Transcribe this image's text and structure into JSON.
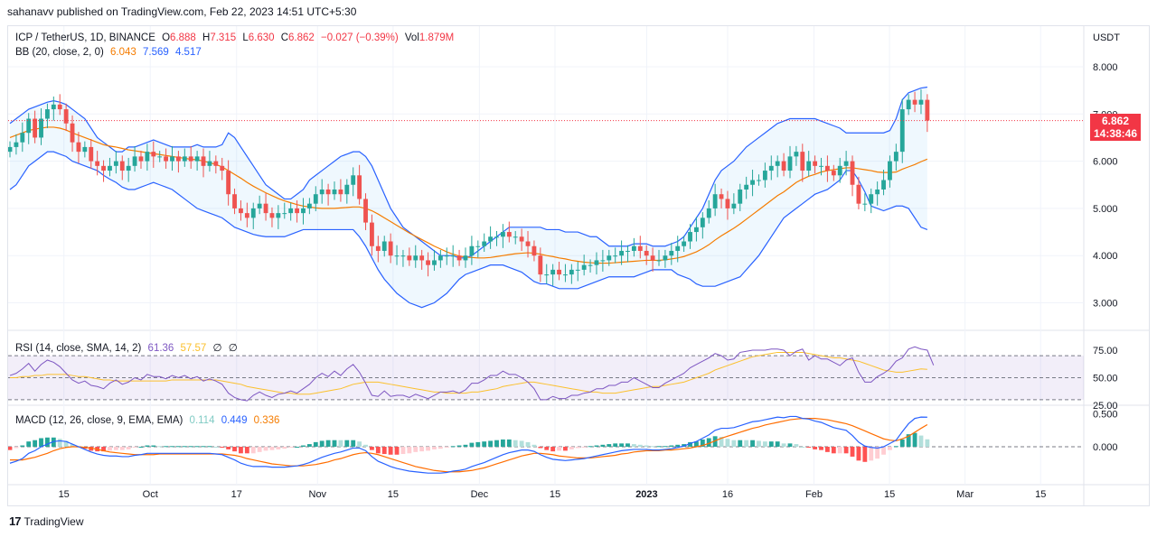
{
  "publisher": "sahanavv published on TradingView.com, Feb 22, 2023 14:51 UTC+5:30",
  "legend_main": {
    "symbol": "ICP / TetherUS, 1D, BINANCE",
    "o_label": "O",
    "o": "6.888",
    "h_label": "H",
    "h": "7.315",
    "l_label": "L",
    "l": "6.630",
    "c_label": "C",
    "c": "6.862",
    "change": "−0.027 (−0.39%)",
    "vol_label": "Vol",
    "vol": "1.879M"
  },
  "legend_bb": {
    "name": "BB (20, close, 2, 0)",
    "basis": "6.043",
    "upper": "7.569",
    "lower": "4.517"
  },
  "legend_rsi": {
    "name": "RSI (14, close, SMA, 14, 2)",
    "rsi": "61.36",
    "sma": "57.57",
    "a": "∅",
    "b": "∅"
  },
  "legend_macd": {
    "name": "MACD (12, 26, close, 9, EMA, EMA)",
    "hist": "0.114",
    "macd": "0.449",
    "signal": "0.336"
  },
  "price_tag": {
    "price": "6.862",
    "countdown": "14:38:46"
  },
  "footer": {
    "brand": "TradingView",
    "logo": "17"
  },
  "chart_data": {
    "type": "candlestick",
    "currency_label": "USDT",
    "price_ticks": [
      "8.000",
      "7.000",
      "6.000",
      "5.000",
      "4.000",
      "3.000"
    ],
    "price_tick_values": [
      8,
      7,
      6,
      5,
      4,
      3
    ],
    "rsi_ticks": [
      "75.00",
      "50.00",
      "25.00"
    ],
    "rsi_tick_values": [
      75,
      50,
      25
    ],
    "macd_ticks": [
      "0.500",
      "0.000"
    ],
    "macd_tick_values": [
      0.5,
      0
    ],
    "x_ticks": [
      {
        "label": "15",
        "date": "2022-09-15"
      },
      {
        "label": "Oct",
        "date": "2022-10-01"
      },
      {
        "label": "17",
        "date": "2022-10-17"
      },
      {
        "label": "Nov",
        "date": "2022-11-01"
      },
      {
        "label": "15",
        "date": "2022-11-15"
      },
      {
        "label": "Dec",
        "date": "2022-12-01"
      },
      {
        "label": "15",
        "date": "2022-12-15"
      },
      {
        "label": "2023",
        "date": "2023-01-01"
      },
      {
        "label": "16",
        "date": "2023-01-16"
      },
      {
        "label": "Feb",
        "date": "2023-02-01"
      },
      {
        "label": "15",
        "date": "2023-02-15"
      },
      {
        "label": "Mar",
        "date": "2023-03-01"
      },
      {
        "label": "15",
        "date": "2023-03-15"
      }
    ],
    "date_range": [
      "2022-09-05",
      "2023-02-22"
    ],
    "close": [
      6.3,
      6.4,
      6.6,
      6.9,
      6.5,
      6.9,
      7.1,
      7.2,
      7.1,
      6.8,
      6.4,
      6.2,
      6.3,
      6.0,
      5.9,
      5.8,
      5.9,
      6.0,
      5.8,
      5.9,
      6.1,
      6.0,
      6.2,
      6.1,
      6.1,
      6.0,
      6.1,
      6.0,
      6.1,
      6.0,
      6.1,
      5.9,
      6.0,
      5.9,
      5.8,
      5.3,
      5.0,
      4.9,
      4.8,
      5.0,
      5.1,
      4.9,
      4.8,
      4.9,
      4.9,
      5.0,
      4.9,
      5.0,
      5.1,
      5.3,
      5.4,
      5.3,
      5.4,
      5.3,
      5.5,
      5.7,
      5.2,
      4.7,
      4.2,
      4.1,
      4.3,
      4.0,
      4.0,
      4.0,
      3.9,
      4.0,
      3.9,
      3.8,
      3.9,
      4.0,
      4.0,
      4.0,
      3.9,
      4.0,
      4.2,
      4.2,
      4.3,
      4.4,
      4.4,
      4.5,
      4.4,
      4.4,
      4.3,
      4.2,
      4.0,
      3.6,
      3.6,
      3.7,
      3.6,
      3.6,
      3.7,
      3.7,
      3.8,
      3.8,
      3.9,
      3.9,
      4.0,
      4.0,
      4.1,
      4.1,
      4.2,
      4.1,
      4.0,
      3.9,
      3.9,
      4.0,
      4.1,
      4.2,
      4.3,
      4.5,
      4.6,
      4.8,
      5.0,
      5.3,
      5.2,
      5.0,
      5.1,
      5.4,
      5.5,
      5.6,
      5.6,
      5.8,
      5.9,
      6.0,
      5.8,
      6.1,
      6.2,
      5.8,
      6.0,
      5.9,
      5.9,
      5.8,
      5.7,
      5.9,
      6.0,
      5.5,
      5.1,
      5.1,
      5.3,
      5.4,
      5.6,
      6.0,
      6.2,
      7.1,
      7.3,
      7.2,
      7.3,
      6.86
    ],
    "bb_upper": [
      6.8,
      6.9,
      7.0,
      7.1,
      7.15,
      7.2,
      7.25,
      7.28,
      7.25,
      7.2,
      7.1,
      7.0,
      6.9,
      6.7,
      6.5,
      6.4,
      6.3,
      6.2,
      6.2,
      6.3,
      6.3,
      6.35,
      6.4,
      6.45,
      6.4,
      6.35,
      6.3,
      6.3,
      6.3,
      6.3,
      6.35,
      6.3,
      6.3,
      6.3,
      6.35,
      6.6,
      6.5,
      6.3,
      6.1,
      5.9,
      5.7,
      5.5,
      5.4,
      5.3,
      5.2,
      5.2,
      5.3,
      5.4,
      5.6,
      5.7,
      5.8,
      5.9,
      6.0,
      6.1,
      6.15,
      6.2,
      6.2,
      6.1,
      5.9,
      5.6,
      5.3,
      5.0,
      4.8,
      4.6,
      4.5,
      4.4,
      4.3,
      4.2,
      4.1,
      4.0,
      4.0,
      4.0,
      3.95,
      3.95,
      4.0,
      4.1,
      4.2,
      4.3,
      4.4,
      4.5,
      4.6,
      4.6,
      4.6,
      4.6,
      4.6,
      4.6,
      4.55,
      4.55,
      4.55,
      4.5,
      4.5,
      4.5,
      4.45,
      4.4,
      4.4,
      4.3,
      4.2,
      4.2,
      4.2,
      4.2,
      4.25,
      4.25,
      4.25,
      4.2,
      4.2,
      4.2,
      4.25,
      4.3,
      4.4,
      4.6,
      4.8,
      5.0,
      5.3,
      5.6,
      5.8,
      5.9,
      6.0,
      6.15,
      6.3,
      6.4,
      6.5,
      6.6,
      6.7,
      6.8,
      6.85,
      6.9,
      6.9,
      6.9,
      6.9,
      6.9,
      6.85,
      6.8,
      6.75,
      6.7,
      6.6,
      6.6,
      6.6,
      6.6,
      6.6,
      6.6,
      6.6,
      6.65,
      6.9,
      7.3,
      7.45,
      7.5,
      7.55,
      7.57
    ],
    "bb_basis": [
      6.5,
      6.55,
      6.6,
      6.65,
      6.68,
      6.7,
      6.72,
      6.72,
      6.7,
      6.66,
      6.6,
      6.55,
      6.5,
      6.45,
      6.4,
      6.35,
      6.32,
      6.3,
      6.27,
      6.24,
      6.22,
      6.2,
      6.18,
      6.16,
      6.14,
      6.12,
      6.1,
      6.08,
      6.06,
      6.04,
      6.03,
      6.0,
      5.97,
      5.93,
      5.88,
      5.8,
      5.72,
      5.64,
      5.55,
      5.47,
      5.4,
      5.33,
      5.27,
      5.21,
      5.16,
      5.12,
      5.08,
      5.05,
      5.03,
      5.01,
      5.0,
      5.0,
      5.0,
      5.01,
      5.02,
      5.03,
      5.03,
      5.0,
      4.95,
      4.88,
      4.8,
      4.72,
      4.64,
      4.56,
      4.48,
      4.41,
      4.34,
      4.27,
      4.2,
      4.14,
      4.08,
      4.03,
      3.99,
      3.97,
      3.96,
      3.95,
      3.95,
      3.96,
      3.98,
      4.0,
      4.02,
      4.04,
      4.05,
      4.06,
      4.05,
      4.03,
      4.0,
      3.98,
      3.95,
      3.93,
      3.9,
      3.88,
      3.86,
      3.85,
      3.84,
      3.84,
      3.84,
      3.85,
      3.86,
      3.87,
      3.88,
      3.89,
      3.9,
      3.9,
      3.9,
      3.91,
      3.93,
      3.95,
      3.98,
      4.03,
      4.08,
      4.15,
      4.23,
      4.33,
      4.42,
      4.5,
      4.58,
      4.67,
      4.77,
      4.87,
      4.97,
      5.07,
      5.17,
      5.27,
      5.35,
      5.45,
      5.55,
      5.62,
      5.68,
      5.72,
      5.77,
      5.8,
      5.82,
      5.84,
      5.86,
      5.86,
      5.84,
      5.82,
      5.8,
      5.77,
      5.76,
      5.76,
      5.77,
      5.83,
      5.88,
      5.93,
      5.99,
      6.043
    ],
    "bb_lower": [
      5.4,
      5.5,
      5.7,
      5.9,
      6.0,
      6.1,
      6.2,
      6.2,
      6.15,
      6.1,
      6.0,
      5.95,
      5.9,
      5.85,
      5.8,
      5.7,
      5.62,
      5.55,
      5.45,
      5.4,
      5.4,
      5.45,
      5.5,
      5.55,
      5.5,
      5.45,
      5.4,
      5.3,
      5.2,
      5.1,
      5.0,
      4.95,
      4.9,
      4.85,
      4.8,
      4.7,
      4.6,
      4.55,
      4.5,
      4.45,
      4.42,
      4.4,
      4.4,
      4.4,
      4.4,
      4.45,
      4.5,
      4.55,
      4.55,
      4.55,
      4.55,
      4.55,
      4.55,
      4.55,
      4.55,
      4.55,
      4.4,
      4.2,
      3.95,
      3.7,
      3.5,
      3.35,
      3.2,
      3.1,
      3.0,
      2.95,
      2.9,
      2.95,
      3.0,
      3.1,
      3.2,
      3.35,
      3.5,
      3.6,
      3.65,
      3.7,
      3.75,
      3.8,
      3.8,
      3.8,
      3.75,
      3.7,
      3.65,
      3.55,
      3.45,
      3.4,
      3.4,
      3.35,
      3.3,
      3.3,
      3.3,
      3.3,
      3.35,
      3.4,
      3.45,
      3.5,
      3.55,
      3.55,
      3.55,
      3.55,
      3.55,
      3.6,
      3.65,
      3.7,
      3.7,
      3.7,
      3.7,
      3.6,
      3.55,
      3.5,
      3.4,
      3.35,
      3.35,
      3.35,
      3.4,
      3.45,
      3.5,
      3.55,
      3.7,
      3.85,
      4.0,
      4.2,
      4.4,
      4.6,
      4.8,
      4.9,
      5.0,
      5.1,
      5.2,
      5.3,
      5.35,
      5.4,
      5.5,
      5.6,
      5.8,
      5.8,
      5.6,
      5.35,
      5.05,
      5.0,
      4.95,
      5.0,
      5.05,
      5.05,
      5.0,
      4.8,
      4.6,
      4.55,
      4.517
    ],
    "rsi": [
      52,
      54,
      58,
      63,
      56,
      62,
      66,
      64,
      60,
      54,
      48,
      45,
      47,
      43,
      42,
      40,
      45,
      48,
      44,
      46,
      50,
      48,
      53,
      51,
      51,
      49,
      52,
      50,
      52,
      49,
      51,
      47,
      49,
      47,
      44,
      36,
      32,
      30,
      29,
      34,
      37,
      34,
      32,
      35,
      36,
      38,
      36,
      40,
      44,
      50,
      54,
      51,
      56,
      52,
      58,
      62,
      55,
      45,
      34,
      33,
      38,
      33,
      34,
      34,
      32,
      35,
      33,
      31,
      34,
      37,
      37,
      38,
      36,
      39,
      45,
      45,
      48,
      52,
      52,
      56,
      53,
      53,
      50,
      46,
      40,
      30,
      30,
      33,
      31,
      31,
      34,
      34,
      36,
      37,
      40,
      40,
      43,
      43,
      46,
      46,
      50,
      47,
      44,
      41,
      41,
      45,
      48,
      51,
      54,
      59,
      62,
      65,
      68,
      72,
      70,
      66,
      67,
      73,
      74,
      75,
      75,
      75,
      76,
      76,
      75,
      70,
      74,
      76,
      66,
      70,
      67,
      67,
      64,
      61,
      66,
      68,
      55,
      46,
      46,
      51,
      54,
      58,
      65,
      68,
      76,
      78,
      76,
      75,
      61.36
    ],
    "rsi_sma": [
      50,
      50,
      51,
      51,
      52,
      52,
      53,
      53,
      53,
      53,
      52,
      51,
      51,
      50,
      49,
      48,
      48,
      47,
      47,
      47,
      47,
      47,
      47,
      47,
      47,
      47,
      48,
      48,
      48,
      48,
      48,
      48,
      48,
      48,
      47,
      46,
      45,
      44,
      42,
      41,
      40,
      39,
      38,
      37,
      36,
      36,
      35,
      35,
      35,
      36,
      37,
      38,
      39,
      40,
      42,
      44,
      45,
      46,
      46,
      46,
      45,
      44,
      43,
      42,
      41,
      40,
      39,
      38,
      37,
      37,
      36,
      36,
      36,
      36,
      37,
      37,
      38,
      39,
      40,
      42,
      43,
      44,
      45,
      46,
      46,
      45,
      44,
      43,
      42,
      41,
      40,
      39,
      38,
      37,
      37,
      36,
      36,
      36,
      37,
      38,
      39,
      40,
      41,
      42,
      42,
      43,
      44,
      45,
      46,
      48,
      50,
      52,
      54,
      57,
      59,
      61,
      63,
      65,
      67,
      69,
      70,
      71,
      72,
      73,
      73,
      73,
      73,
      73,
      72,
      71,
      70,
      69,
      68,
      68,
      67,
      66,
      65,
      63,
      61,
      59,
      57,
      56,
      55,
      55,
      56,
      57,
      58,
      57.57
    ],
    "macd": [
      -0.25,
      -0.22,
      -0.18,
      -0.1,
      -0.06,
      0.0,
      0.04,
      0.08,
      0.09,
      0.08,
      0.04,
      0.0,
      -0.04,
      -0.08,
      -0.11,
      -0.13,
      -0.14,
      -0.14,
      -0.15,
      -0.15,
      -0.13,
      -0.12,
      -0.1,
      -0.1,
      -0.1,
      -0.1,
      -0.1,
      -0.1,
      -0.1,
      -0.1,
      -0.1,
      -0.1,
      -0.1,
      -0.11,
      -0.12,
      -0.16,
      -0.2,
      -0.25,
      -0.28,
      -0.3,
      -0.3,
      -0.3,
      -0.31,
      -0.31,
      -0.31,
      -0.3,
      -0.29,
      -0.27,
      -0.24,
      -0.2,
      -0.16,
      -0.13,
      -0.1,
      -0.08,
      -0.05,
      -0.02,
      -0.02,
      -0.06,
      -0.15,
      -0.22,
      -0.26,
      -0.3,
      -0.33,
      -0.35,
      -0.37,
      -0.38,
      -0.39,
      -0.4,
      -0.4,
      -0.4,
      -0.39,
      -0.37,
      -0.36,
      -0.34,
      -0.3,
      -0.27,
      -0.24,
      -0.2,
      -0.16,
      -0.12,
      -0.09,
      -0.07,
      -0.05,
      -0.05,
      -0.07,
      -0.12,
      -0.16,
      -0.19,
      -0.2,
      -0.21,
      -0.2,
      -0.19,
      -0.18,
      -0.16,
      -0.14,
      -0.12,
      -0.1,
      -0.08,
      -0.06,
      -0.05,
      -0.04,
      -0.04,
      -0.04,
      -0.05,
      -0.05,
      -0.04,
      -0.03,
      -0.01,
      0.01,
      0.05,
      0.08,
      0.13,
      0.18,
      0.25,
      0.28,
      0.28,
      0.29,
      0.32,
      0.35,
      0.38,
      0.39,
      0.41,
      0.43,
      0.45,
      0.44,
      0.46,
      0.46,
      0.43,
      0.42,
      0.39,
      0.37,
      0.33,
      0.29,
      0.27,
      0.25,
      0.17,
      0.07,
      0.01,
      -0.01,
      -0.02,
      0.0,
      0.05,
      0.1,
      0.23,
      0.35,
      0.43,
      0.45,
      0.449
    ],
    "macd_signal": [
      -0.2,
      -0.2,
      -0.2,
      -0.18,
      -0.16,
      -0.13,
      -0.1,
      -0.06,
      -0.03,
      -0.01,
      0.0,
      0.0,
      -0.01,
      -0.02,
      -0.04,
      -0.06,
      -0.08,
      -0.09,
      -0.1,
      -0.11,
      -0.12,
      -0.12,
      -0.12,
      -0.12,
      -0.11,
      -0.11,
      -0.11,
      -0.11,
      -0.11,
      -0.11,
      -0.11,
      -0.11,
      -0.11,
      -0.11,
      -0.11,
      -0.12,
      -0.13,
      -0.15,
      -0.18,
      -0.2,
      -0.22,
      -0.24,
      -0.26,
      -0.27,
      -0.28,
      -0.29,
      -0.29,
      -0.29,
      -0.28,
      -0.27,
      -0.25,
      -0.23,
      -0.2,
      -0.18,
      -0.15,
      -0.12,
      -0.1,
      -0.09,
      -0.1,
      -0.12,
      -0.15,
      -0.18,
      -0.21,
      -0.24,
      -0.27,
      -0.3,
      -0.32,
      -0.34,
      -0.36,
      -0.37,
      -0.38,
      -0.38,
      -0.38,
      -0.37,
      -0.36,
      -0.34,
      -0.32,
      -0.29,
      -0.26,
      -0.23,
      -0.2,
      -0.17,
      -0.14,
      -0.12,
      -0.1,
      -0.1,
      -0.11,
      -0.12,
      -0.14,
      -0.15,
      -0.16,
      -0.17,
      -0.17,
      -0.17,
      -0.16,
      -0.15,
      -0.14,
      -0.13,
      -0.11,
      -0.1,
      -0.08,
      -0.07,
      -0.06,
      -0.06,
      -0.06,
      -0.05,
      -0.05,
      -0.04,
      -0.03,
      -0.02,
      0.0,
      0.02,
      0.05,
      0.09,
      0.13,
      0.16,
      0.19,
      0.22,
      0.25,
      0.28,
      0.3,
      0.33,
      0.35,
      0.37,
      0.39,
      0.41,
      0.42,
      0.43,
      0.43,
      0.43,
      0.42,
      0.41,
      0.39,
      0.37,
      0.35,
      0.32,
      0.28,
      0.24,
      0.2,
      0.16,
      0.12,
      0.1,
      0.09,
      0.12,
      0.16,
      0.22,
      0.28,
      0.336
    ]
  }
}
